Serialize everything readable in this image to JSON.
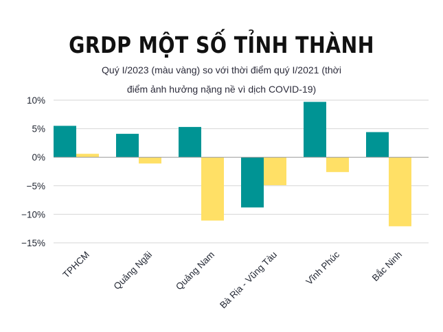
{
  "title": "GRDP MỘT SỐ TỈNH THÀNH",
  "subtitle_line1": "Quý I/2023 (màu vàng) so với thời điểm quý I/2021 (thời",
  "subtitle_line2": "điểm ảnh hưởng nặng nề vì dịch COVID-19)",
  "colors": {
    "q1_2021": "#009494",
    "q1_2023": "#FFE066",
    "grid": "#d6d6d6",
    "zero_line": "#9a9a9a"
  },
  "chart_data": {
    "type": "bar",
    "categories": [
      "TPHCM",
      "Quảng Ngãi",
      "Quảng Nam",
      "Bà Rịa - Vũng Tàu",
      "Vĩnh Phúc",
      "Bắc Ninh"
    ],
    "series": [
      {
        "key": "q1_2021",
        "color": "#009494",
        "values": [
          5.5,
          4.1,
          5.3,
          -8.8,
          9.7,
          4.4
        ]
      },
      {
        "key": "q1_2023",
        "color": "#FFE066",
        "values": [
          0.6,
          -1.1,
          -11.1,
          -4.9,
          -2.6,
          -12.1
        ]
      }
    ],
    "y_ticks": [
      10,
      5,
      0,
      -5,
      -10,
      -15
    ],
    "y_tick_labels": [
      "10%",
      "5%",
      "0%",
      "−5%",
      "−10%",
      "−15%"
    ],
    "ylim": [
      -15,
      10
    ],
    "grid": true,
    "legend": "none",
    "xlabel": "",
    "ylabel": ""
  }
}
